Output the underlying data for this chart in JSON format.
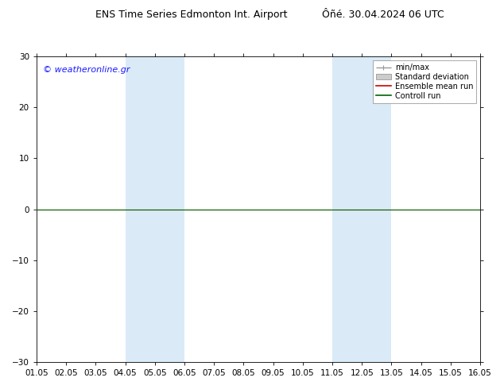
{
  "title": "ENS Time Series Edmonton Int. Airport     Ôñé. 30.04.2024 06 UTC",
  "title_left": "ENS Time Series Edmonton Int. Airport",
  "title_right": "Ôñé. 30.04.2024 06 UTC",
  "watermark": "© weatheronline.gr",
  "watermark_color": "#1a1aff",
  "ylim": [
    -30,
    30
  ],
  "yticks": [
    -30,
    -20,
    -10,
    0,
    10,
    20,
    30
  ],
  "xtick_labels": [
    "01.05",
    "02.05",
    "03.05",
    "04.05",
    "05.05",
    "06.05",
    "07.05",
    "08.05",
    "09.05",
    "10.05",
    "11.05",
    "12.05",
    "13.05",
    "14.05",
    "15.05",
    "16.05"
  ],
  "xlim": [
    0,
    15
  ],
  "blue_bands": [
    [
      3,
      4
    ],
    [
      4,
      5
    ],
    [
      10,
      11
    ],
    [
      11,
      12
    ]
  ],
  "blue_band_color": "#daeaf7",
  "green_line_color": "#006400",
  "red_line_color": "#cc0000",
  "gray_line_color": "#999999",
  "background_color": "#ffffff",
  "title_fontsize": 9,
  "tick_fontsize": 7.5,
  "legend_fontsize": 7,
  "watermark_fontsize": 8
}
